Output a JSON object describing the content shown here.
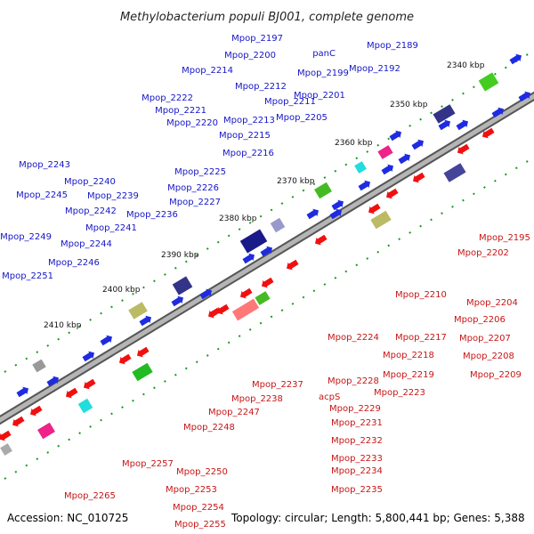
{
  "title": "Methylobacterium populi BJ001, complete genome",
  "footer": {
    "accession": "Accession: NC_010725",
    "summary": "Topology: circular; Length: 5,800,441 bp; Genes: 5,388"
  },
  "scale_ticks": [
    "2340 kbp",
    "2350 kbp",
    "2360 kbp",
    "2370 kbp",
    "2380 kbp",
    "2390 kbp",
    "2400 kbp",
    "2410 kbp"
  ],
  "colors": {
    "forward_label": "#1515c8",
    "reverse_label": "#c81515",
    "forward_gene": "#1f2be0",
    "reverse_gene": "#f01010",
    "tick_dash": "#1a9a1a",
    "backbone": "#777777"
  },
  "forward_labels": [
    "Mpop_2197",
    "panC",
    "Mpop_2189",
    "Mpop_2200",
    "Mpop_2199",
    "Mpop_2192",
    "Mpop_2214",
    "Mpop_2212",
    "Mpop_2201",
    "Mpop_2222",
    "Mpop_2211",
    "Mpop_2221",
    "Mpop_2205",
    "Mpop_2220",
    "Mpop_2213",
    "Mpop_2215",
    "Mpop_2216",
    "Mpop_2243",
    "Mpop_2225",
    "Mpop_2240",
    "Mpop_2226",
    "Mpop_2245",
    "Mpop_2239",
    "Mpop_2227",
    "Mpop_2242",
    "Mpop_2236",
    "Mpop_2241",
    "Mpop_2249",
    "Mpop_2244",
    "Mpop_2246",
    "Mpop_2251"
  ],
  "reverse_labels": [
    "Mpop_2195",
    "Mpop_2202",
    "Mpop_2210",
    "Mpop_2204",
    "Mpop_2206",
    "Mpop_2207",
    "Mpop_2217",
    "Mpop_2208",
    "Mpop_2224",
    "Mpop_2218",
    "Mpop_2209",
    "Mpop_2219",
    "Mpop_2228",
    "Mpop_2237",
    "Mpop_2223",
    "acpS",
    "Mpop_2238",
    "Mpop_2229",
    "Mpop_2247",
    "Mpop_2231",
    "Mpop_2248",
    "Mpop_2232",
    "Mpop_2233",
    "Mpop_2257",
    "Mpop_2234",
    "Mpop_2250",
    "Mpop_2235",
    "Mpop_2253",
    "Mpop_2265",
    "Mpop_2254",
    "Mpop_2255"
  ]
}
